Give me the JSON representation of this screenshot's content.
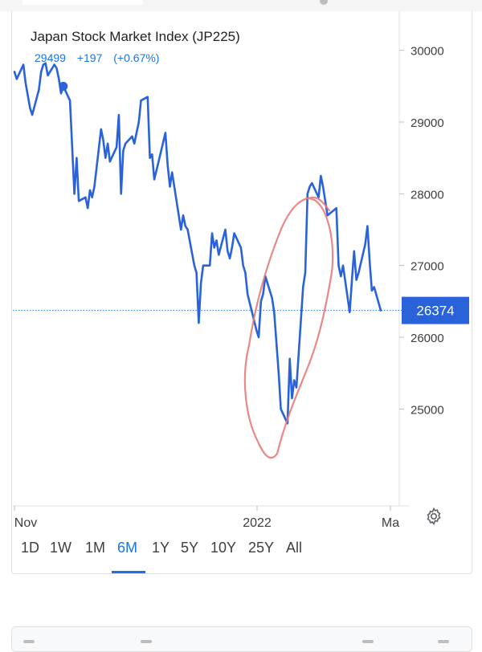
{
  "header": {
    "title": "Japan Stock Market Index (JP225)",
    "price": "29499",
    "change": "+197",
    "change_pct": "(+0.67%)"
  },
  "range_tabs": [
    "1D",
    "1W",
    "1M",
    "6M",
    "1Y",
    "5Y",
    "10Y",
    "25Y",
    "All"
  ],
  "active_range": "6M",
  "colors": {
    "line": "#2962d9",
    "accent": "#1a73e8",
    "last_price_badge": "#2962d9",
    "annotation_circle": "#e87a7a"
  },
  "icons": {
    "settings": "gear-icon"
  },
  "chart_data": {
    "type": "line",
    "title": "Japan Stock Market Index (JP225)",
    "x_tick_labels": [
      "Nov",
      "2022",
      "Ma"
    ],
    "y_ticks": [
      25000,
      26000,
      27000,
      28000,
      29000,
      30000
    ],
    "ylim": [
      23650,
      30500
    ],
    "last_price": "26374",
    "series": [
      {
        "points": [
          [
            "2021-10-28",
            29700
          ],
          [
            "2021-10-29",
            29600
          ],
          [
            "2021-11-01",
            29800
          ],
          [
            "2021-11-02",
            29550
          ],
          [
            "2021-11-04",
            29200
          ],
          [
            "2021-11-05",
            29100
          ],
          [
            "2021-11-08",
            29450
          ],
          [
            "2021-11-09",
            29700
          ],
          [
            "2021-11-10",
            29800
          ],
          [
            "2021-11-11",
            29820
          ],
          [
            "2021-11-12",
            29650
          ],
          [
            "2021-11-15",
            29800
          ],
          [
            "2021-11-16",
            29750
          ],
          [
            "2021-11-17",
            29600
          ],
          [
            "2021-11-18",
            29400
          ],
          [
            "2021-11-19",
            29499
          ],
          [
            "2021-11-22",
            29300
          ],
          [
            "2021-11-24",
            28000
          ],
          [
            "2021-11-25",
            28500
          ],
          [
            "2021-11-26",
            27900
          ],
          [
            "2021-11-29",
            27950
          ],
          [
            "2021-11-30",
            27800
          ],
          [
            "2021-12-01",
            28050
          ],
          [
            "2021-12-02",
            27950
          ],
          [
            "2021-12-03",
            28100
          ],
          [
            "2021-12-06",
            28900
          ],
          [
            "2021-12-07",
            28750
          ],
          [
            "2021-12-08",
            28500
          ],
          [
            "2021-12-09",
            28700
          ],
          [
            "2021-12-10",
            28450
          ],
          [
            "2021-12-13",
            28650
          ],
          [
            "2021-12-14",
            29100
          ],
          [
            "2021-12-15",
            28000
          ],
          [
            "2021-12-16",
            28600
          ],
          [
            "2021-12-17",
            28700
          ],
          [
            "2021-12-20",
            28800
          ],
          [
            "2021-12-21",
            28700
          ],
          [
            "2021-12-22",
            28850
          ],
          [
            "2021-12-23",
            29000
          ],
          [
            "2021-12-24",
            29300
          ],
          [
            "2021-12-27",
            29350
          ],
          [
            "2021-12-28",
            28500
          ],
          [
            "2021-12-29",
            28550
          ],
          [
            "2021-12-30",
            28200
          ],
          [
            "2022-01-04",
            28850
          ],
          [
            "2022-01-05",
            28400
          ],
          [
            "2022-01-06",
            28100
          ],
          [
            "2022-01-07",
            28300
          ],
          [
            "2022-01-11",
            27500
          ],
          [
            "2022-01-12",
            27700
          ],
          [
            "2022-01-13",
            27550
          ],
          [
            "2022-01-14",
            27500
          ],
          [
            "2022-01-17",
            27000
          ],
          [
            "2022-01-18",
            26900
          ],
          [
            "2022-01-19",
            26200
          ],
          [
            "2022-01-20",
            26750
          ],
          [
            "2022-01-21",
            27000
          ],
          [
            "2022-01-24",
            27000
          ],
          [
            "2022-01-25",
            27450
          ],
          [
            "2022-01-26",
            27250
          ],
          [
            "2022-01-27",
            27350
          ],
          [
            "2022-01-28",
            27150
          ],
          [
            "2022-01-31",
            27500
          ],
          [
            "2022-02-01",
            27200
          ],
          [
            "2022-02-02",
            27100
          ],
          [
            "2022-02-03",
            27250
          ],
          [
            "2022-02-04",
            27450
          ],
          [
            "2022-02-07",
            27250
          ],
          [
            "2022-02-08",
            27000
          ],
          [
            "2022-02-09",
            26900
          ],
          [
            "2022-02-10",
            26600
          ],
          [
            "2022-02-14",
            26100
          ],
          [
            "2022-02-15",
            26000
          ],
          [
            "2022-02-16",
            26500
          ],
          [
            "2022-02-17",
            26600
          ],
          [
            "2022-02-18",
            26850
          ],
          [
            "2022-02-21",
            26550
          ],
          [
            "2022-02-22",
            26350
          ],
          [
            "2022-02-24",
            25500
          ],
          [
            "2022-02-25",
            25000
          ],
          [
            "2022-02-28",
            24800
          ],
          [
            "2022-03-01",
            25700
          ],
          [
            "2022-03-02",
            25150
          ],
          [
            "2022-03-03",
            25400
          ],
          [
            "2022-03-04",
            25300
          ],
          [
            "2022-03-07",
            26700
          ],
          [
            "2022-03-08",
            26900
          ],
          [
            "2022-03-09",
            28000
          ],
          [
            "2022-03-10",
            28100
          ],
          [
            "2022-03-11",
            28150
          ],
          [
            "2022-03-14",
            27950
          ],
          [
            "2022-03-15",
            28250
          ],
          [
            "2022-03-16",
            28100
          ],
          [
            "2022-03-17",
            27900
          ],
          [
            "2022-03-18",
            27700
          ],
          [
            "2022-03-22",
            27800
          ],
          [
            "2022-03-23",
            27000
          ],
          [
            "2022-03-24",
            26850
          ],
          [
            "2022-03-25",
            27000
          ],
          [
            "2022-03-28",
            26350
          ],
          [
            "2022-03-29",
            26800
          ],
          [
            "2022-03-30",
            27200
          ],
          [
            "2022-03-31",
            26800
          ],
          [
            "2022-04-01",
            26900
          ],
          [
            "2022-04-04",
            27300
          ],
          [
            "2022-04-05",
            27550
          ],
          [
            "2022-04-06",
            27050
          ],
          [
            "2022-04-07",
            26650
          ],
          [
            "2022-04-08",
            26700
          ],
          [
            "2022-04-11",
            26374
          ]
        ]
      }
    ]
  }
}
